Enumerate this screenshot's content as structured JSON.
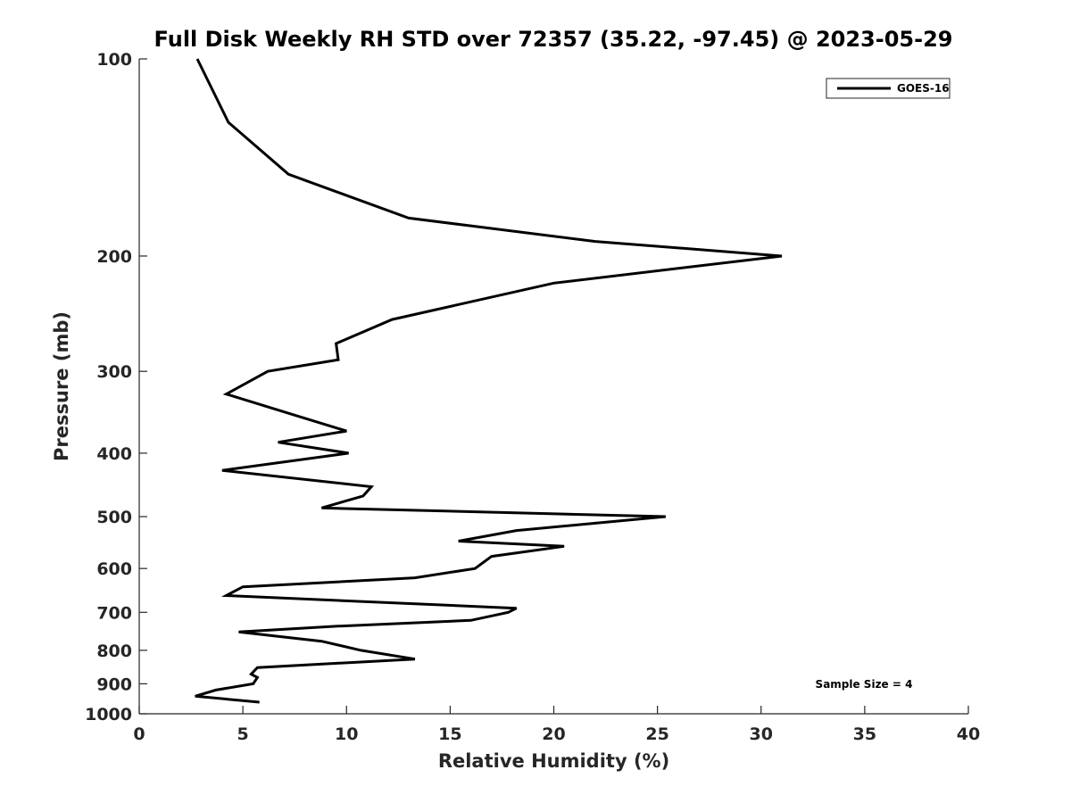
{
  "chart_data": {
    "type": "line",
    "title": "Full Disk Weekly RH STD over 72357 (35.22, -97.45) @ 2023-05-29",
    "xlabel": "Relative Humidity (%)",
    "ylabel": "Pressure (mb)",
    "xlim": [
      0,
      40
    ],
    "ylim": [
      100,
      1000
    ],
    "yscale": "log",
    "reverse_y": true,
    "xticks": [
      0,
      5,
      10,
      15,
      20,
      25,
      30,
      35,
      40
    ],
    "yticks": [
      100,
      200,
      300,
      400,
      500,
      600,
      700,
      800,
      900,
      1000
    ],
    "legend_position": "top-right",
    "annotation": "Sample Size = 4",
    "series": [
      {
        "name": "GOES-16",
        "color": "#000000",
        "points": [
          [
            2.8,
            100
          ],
          [
            4.3,
            125
          ],
          [
            7.2,
            150
          ],
          [
            13.0,
            175
          ],
          [
            22.0,
            190
          ],
          [
            31.0,
            200
          ],
          [
            20.0,
            220
          ],
          [
            12.2,
            250
          ],
          [
            9.5,
            272
          ],
          [
            9.6,
            288
          ],
          [
            6.2,
            300
          ],
          [
            4.2,
            325
          ],
          [
            7.5,
            350
          ],
          [
            10.0,
            370
          ],
          [
            6.7,
            385
          ],
          [
            10.1,
            400
          ],
          [
            4.0,
            425
          ],
          [
            11.2,
            450
          ],
          [
            10.8,
            465
          ],
          [
            8.8,
            485
          ],
          [
            25.4,
            500
          ],
          [
            18.2,
            525
          ],
          [
            15.4,
            545
          ],
          [
            20.5,
            555
          ],
          [
            17.0,
            575
          ],
          [
            16.2,
            600
          ],
          [
            13.3,
            620
          ],
          [
            5.0,
            640
          ],
          [
            4.2,
            660
          ],
          [
            18.2,
            690
          ],
          [
            17.8,
            700
          ],
          [
            16.0,
            720
          ],
          [
            9.5,
            735
          ],
          [
            4.8,
            750
          ],
          [
            8.8,
            775
          ],
          [
            10.7,
            800
          ],
          [
            13.3,
            825
          ],
          [
            5.7,
            850
          ],
          [
            5.4,
            870
          ],
          [
            5.7,
            880
          ],
          [
            5.5,
            900
          ],
          [
            3.7,
            920
          ],
          [
            2.7,
            940
          ],
          [
            5.8,
            960
          ]
        ]
      }
    ]
  }
}
